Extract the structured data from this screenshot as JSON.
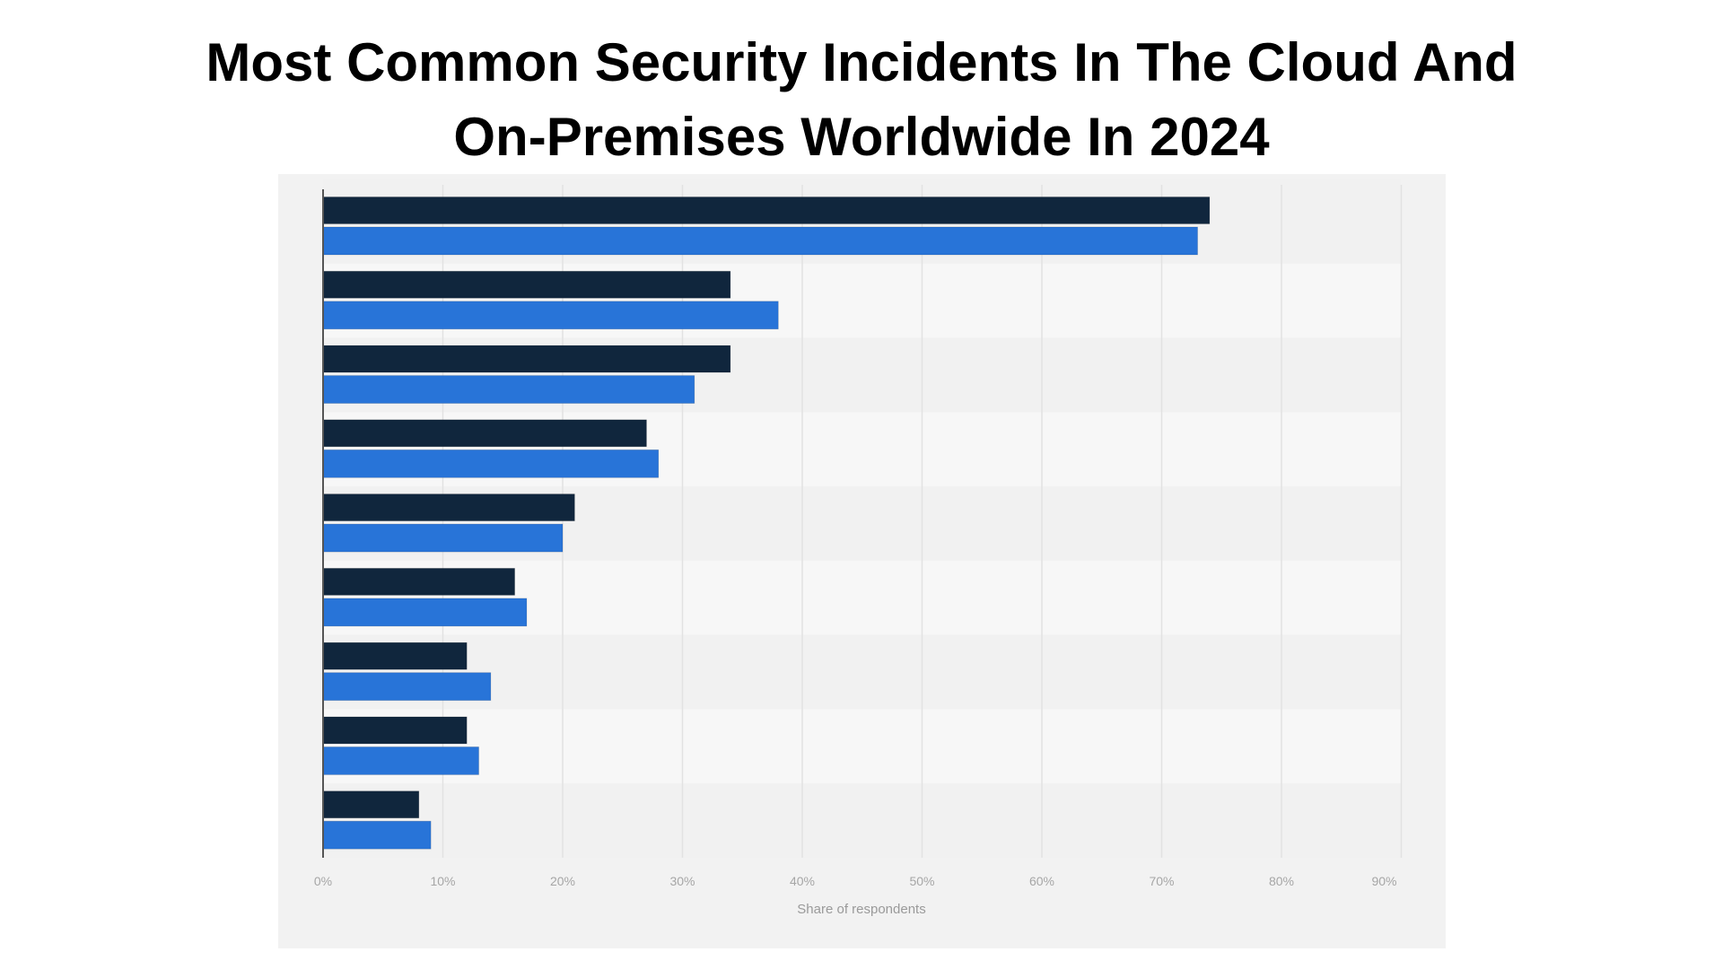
{
  "page": {
    "title_lines": [
      "Most Common Security Incidents In The Cloud And",
      "On-Premises Worldwide In 2024"
    ]
  },
  "chart_data": {
    "type": "bar",
    "orientation": "horizontal",
    "title": "Most Common Security Incidents In The Cloud And On-Premises Worldwide In 2024",
    "xlabel": "Share of respondents",
    "ylabel": "",
    "categories": [
      "",
      "",
      "",
      "",
      "",
      "",
      "",
      "",
      ""
    ],
    "series": [
      {
        "name": "",
        "color": "#10263d",
        "values": [
          74,
          34,
          34,
          27,
          21,
          16,
          12,
          12,
          8
        ]
      },
      {
        "name": "",
        "color": "#2874d8",
        "values": [
          73,
          38,
          31,
          28,
          20,
          17,
          14,
          13,
          9
        ]
      }
    ],
    "xlim": [
      0,
      90
    ],
    "x_ticks": [
      0,
      10,
      20,
      30,
      40,
      50,
      60,
      70,
      80,
      90
    ],
    "x_tick_labels": [
      "0%",
      "10%",
      "20%",
      "30%",
      "40%",
      "50%",
      "60%",
      "70%",
      "80%",
      "90%"
    ],
    "unit": "%",
    "grid": "vertical",
    "legend": "none",
    "band_colors": [
      "#f1f1f1",
      "#f7f7f7"
    ],
    "axis_color": "#555555",
    "grid_color": "#e2e2e2",
    "panel_color": "#f2f2f2"
  }
}
